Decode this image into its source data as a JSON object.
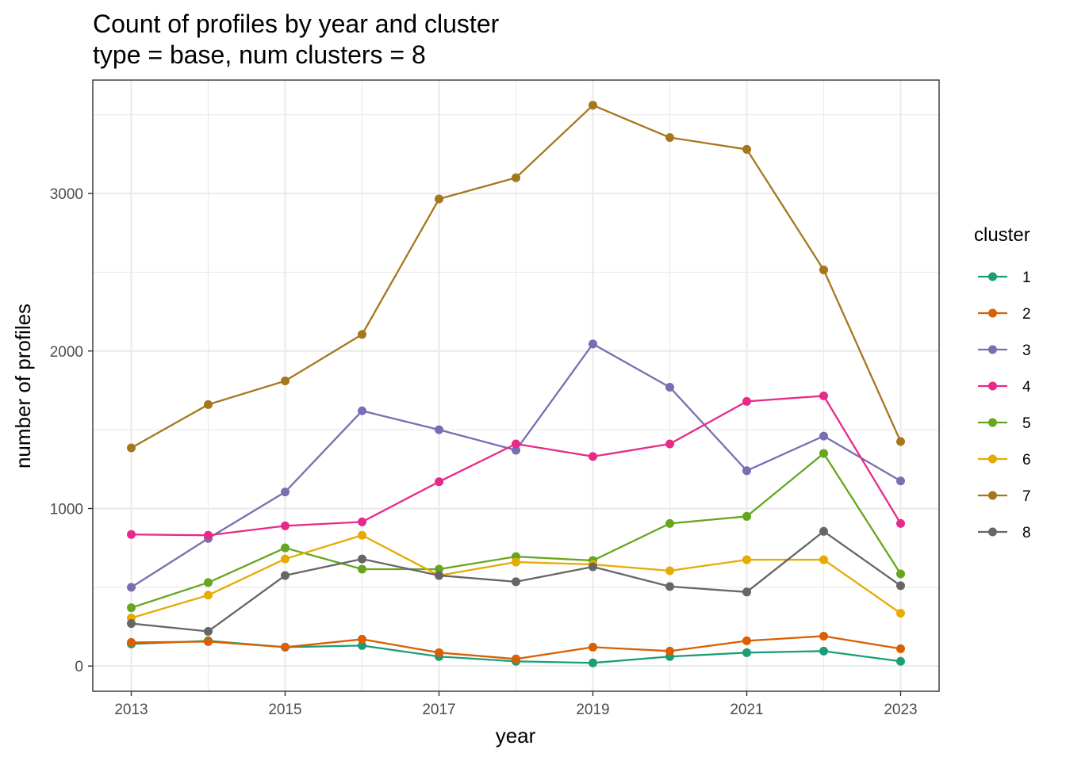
{
  "chart_data": {
    "type": "line",
    "title": "Count of profiles by year and cluster",
    "subtitle": "type = base, num clusters = 8",
    "xlabel": "year",
    "ylabel": "number of profiles",
    "x": [
      2013,
      2014,
      2015,
      2016,
      2017,
      2018,
      2019,
      2020,
      2021,
      2022,
      2023
    ],
    "x_ticks": [
      "2013",
      "2015",
      "2017",
      "2019",
      "2021",
      "2023"
    ],
    "y_ticks": [
      "0",
      "1000",
      "2000",
      "3000"
    ],
    "xlim": [
      2012.5,
      2023.5
    ],
    "ylim": [
      -160,
      3720
    ],
    "grid": true,
    "legend_title": "cluster",
    "legend_position": "right",
    "series": [
      {
        "name": "1",
        "color": "#1b9e77",
        "values": [
          140,
          160,
          120,
          130,
          60,
          30,
          20,
          60,
          85,
          95,
          30
        ]
      },
      {
        "name": "2",
        "color": "#d95f02",
        "values": [
          150,
          155,
          120,
          170,
          85,
          45,
          120,
          95,
          160,
          190,
          110
        ]
      },
      {
        "name": "3",
        "color": "#7570b3",
        "values": [
          500,
          810,
          1105,
          1620,
          1500,
          1370,
          2045,
          1770,
          1240,
          1460,
          1175
        ]
      },
      {
        "name": "4",
        "color": "#e7298a",
        "values": [
          835,
          830,
          890,
          915,
          1170,
          1410,
          1330,
          1410,
          1680,
          1715,
          905
        ]
      },
      {
        "name": "5",
        "color": "#66a61e",
        "values": [
          370,
          530,
          750,
          615,
          615,
          695,
          670,
          905,
          950,
          1350,
          585
        ]
      },
      {
        "name": "6",
        "color": "#e6ab02",
        "values": [
          305,
          450,
          680,
          830,
          575,
          660,
          645,
          605,
          675,
          675,
          335
        ]
      },
      {
        "name": "7",
        "color": "#a6761d",
        "values": [
          1385,
          1660,
          1810,
          2105,
          2965,
          3100,
          3560,
          3355,
          3280,
          2515,
          1425
        ]
      },
      {
        "name": "8",
        "color": "#666666",
        "values": [
          270,
          220,
          575,
          680,
          575,
          535,
          630,
          505,
          470,
          855,
          510
        ]
      }
    ]
  }
}
